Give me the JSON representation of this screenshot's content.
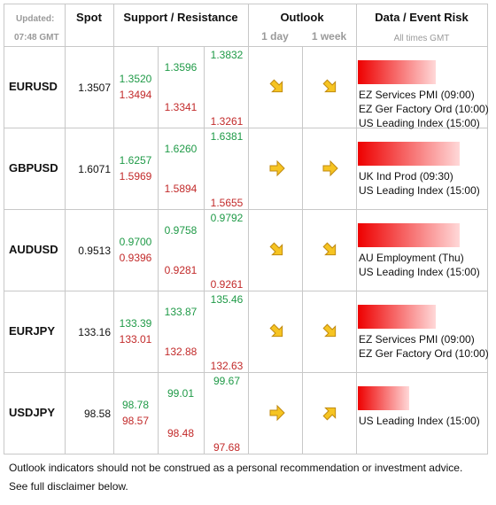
{
  "header": {
    "updated": "Updated:",
    "time": "07:48 GMT",
    "spot": "Spot",
    "support_resistance": "Support / Resistance",
    "outlook": "Outlook",
    "day": "1 day",
    "week": "1 week",
    "risk": "Data / Event Risk",
    "times": "All times GMT"
  },
  "rows": [
    {
      "pair": "EURUSD",
      "spot": "1.3507",
      "levels": [
        [
          "1.3520",
          "1.3494"
        ],
        [
          "1.3596",
          "1.3341"
        ],
        [
          "1.3832",
          "1.3261"
        ]
      ],
      "events": [
        "EZ Services PMI (09:00)",
        "EZ Ger Factory Ord (10:00)",
        "US Leading Index (15:00)"
      ]
    },
    {
      "pair": "GBPUSD",
      "spot": "1.6071",
      "levels": [
        [
          "1.6257",
          "1.5969"
        ],
        [
          "1.6260",
          "1.5894"
        ],
        [
          "1.6381",
          "1.5655"
        ]
      ],
      "events": [
        "UK Ind Prod (09:30)",
        "US Leading Index (15:00)"
      ]
    },
    {
      "pair": "AUDUSD",
      "spot": "0.9513",
      "levels": [
        [
          "0.9700",
          "0.9396"
        ],
        [
          "0.9758",
          "0.9281"
        ],
        [
          "0.9792",
          "0.9261"
        ]
      ],
      "events": [
        "AU Employment (Thu)",
        "US Leading Index (15:00)"
      ]
    },
    {
      "pair": "EURJPY",
      "spot": "133.16",
      "levels": [
        [
          "133.39",
          "133.01"
        ],
        [
          "133.87",
          "132.88"
        ],
        [
          "135.46",
          "132.63"
        ]
      ],
      "events": [
        "EZ Services PMI (09:00)",
        "EZ Ger Factory Ord (10:00)"
      ]
    },
    {
      "pair": "USDJPY",
      "spot": "98.58",
      "levels": [
        [
          "98.78",
          "98.57"
        ],
        [
          "99.01",
          "98.48"
        ],
        [
          "99.67",
          "97.68"
        ]
      ],
      "events": [
        "US Leading Index (15:00)"
      ]
    }
  ],
  "footer": [
    "Outlook indicators should not be construed as a personal recommendation or investment advice.",
    "See full disclaimer below."
  ]
}
